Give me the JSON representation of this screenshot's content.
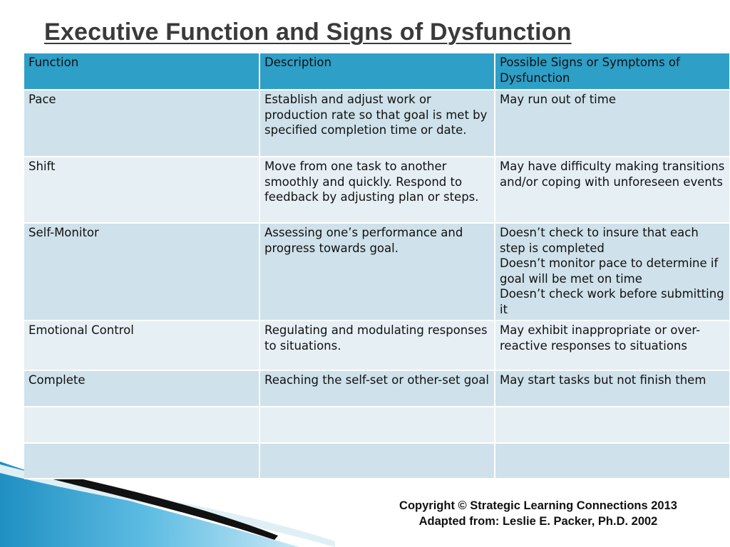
{
  "title": "Executive Function and Signs of Dysfunction",
  "table": {
    "headers": [
      "Function",
      "Description",
      "Possible Signs or Symptoms of Dysfunction"
    ],
    "rows": [
      {
        "function": "Pace",
        "description": "Establish and adjust work or production rate so that goal is met by specified completion time or date.",
        "signs": "May run out of time"
      },
      {
        "function": "Shift",
        "description": "Move from one task to another smoothly and quickly.  Respond to feedback by adjusting plan or steps.",
        "signs": "May have difficulty making transitions and/or coping with unforeseen events"
      },
      {
        "function": "Self-Monitor",
        "description": "Assessing one’s performance and progress towards goal.",
        "signs": "Doesn’t check to insure that each step is completed\nDoesn’t monitor pace to determine if goal will be met on time\nDoesn’t check work before submitting it"
      },
      {
        "function": "Emotional Control",
        "description": "Regulating and modulating responses to situations.",
        "signs": "May exhibit inappropriate or over-reactive responses to situations"
      },
      {
        "function": "Complete",
        "description": "Reaching the self-set or other-set goal",
        "signs": "May start tasks but not finish them"
      },
      {
        "function": "",
        "description": "",
        "signs": ""
      },
      {
        "function": "",
        "description": "",
        "signs": ""
      }
    ]
  },
  "footer": {
    "line1": "Copyright © Strategic Learning Connections 2013",
    "line2": "Adapted from: Leslie E. Packer, Ph.D. 2002"
  },
  "colors": {
    "header_bg": "#2e9fc7",
    "row_light": "#cfe1ea",
    "row_lighter": "#e6eff4",
    "swoosh": "#1a7fb0"
  }
}
